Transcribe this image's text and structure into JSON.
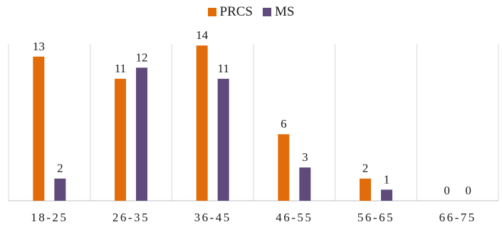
{
  "chart_data": {
    "type": "bar",
    "categories": [
      "18-25",
      "26-35",
      "36-45",
      "46-55",
      "56-65",
      "66-75"
    ],
    "series": [
      {
        "name": "PRCS",
        "values": [
          13,
          11,
          14,
          6,
          2,
          0
        ],
        "color": "#E36C0A"
      },
      {
        "name": "MS",
        "values": [
          2,
          12,
          11,
          3,
          1,
          0
        ],
        "color": "#604A7B"
      }
    ],
    "ylim": [
      0,
      15
    ],
    "legend": "top-center",
    "grid": "vertical category separators"
  }
}
